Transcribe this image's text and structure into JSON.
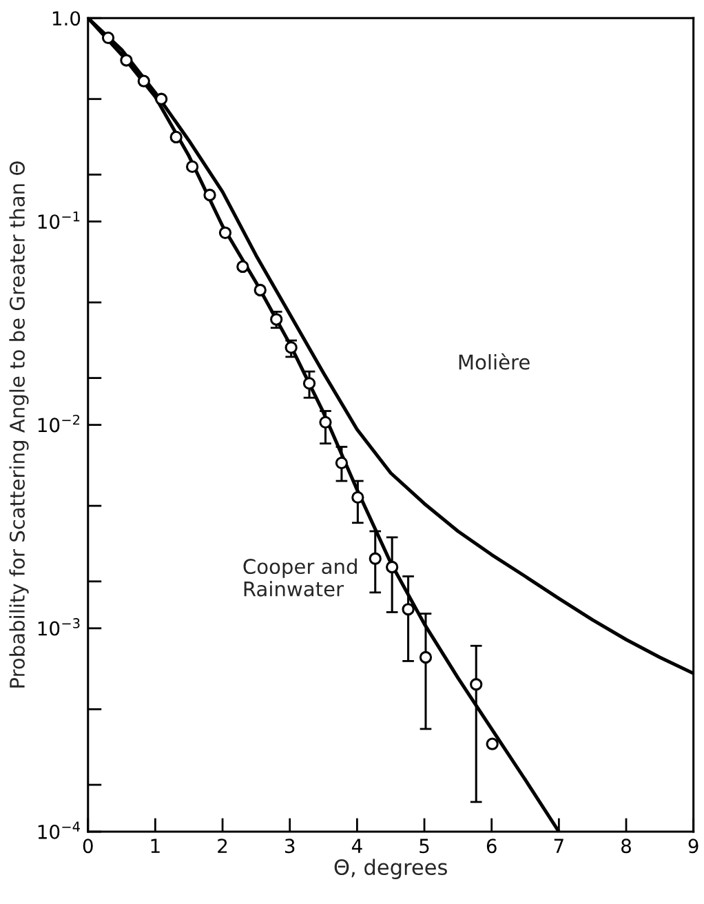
{
  "chart_data": {
    "type": "line",
    "xlabel": "Θ, degrees",
    "ylabel": "Probability for Scattering Angle to be Greater than Θ",
    "log": "y",
    "xlim": [
      0,
      9
    ],
    "xticks": [
      0,
      1,
      2,
      3,
      4,
      5,
      6,
      7,
      8,
      9
    ],
    "ylim": [
      0.0001,
      1
    ],
    "yticks": [
      {
        "value": 0.0001,
        "label": "10$^{−4}$"
      },
      {
        "value": 0.00017,
        "label": null
      },
      {
        "value": 0.0004,
        "label": null
      },
      {
        "value": 0.001,
        "label": "10$^{−3}$"
      },
      {
        "value": 0.0017,
        "label": null
      },
      {
        "value": 0.004,
        "label": null
      },
      {
        "value": 0.01,
        "label": "10$^{−2}$"
      },
      {
        "value": 0.017,
        "label": null
      },
      {
        "value": 0.04,
        "label": null
      },
      {
        "value": 0.1,
        "label": "10$^{−1}$"
      },
      {
        "value": 0.17,
        "label": null
      },
      {
        "value": 0.4,
        "label": null
      },
      {
        "value": 1,
        "label": "1.0"
      }
    ],
    "grid": false,
    "series": [
      {
        "color": "#000000",
        "marker": "none",
        "line_style": "solid",
        "x": [
          0,
          0.5,
          1,
          1.5,
          2,
          2.5,
          3,
          3.5,
          4,
          4.5,
          5,
          5.5,
          6,
          6.5,
          7,
          7.5,
          8,
          8.5,
          9
        ],
        "values": [
          1,
          0.7,
          0.43,
          0.25,
          0.14,
          0.068,
          0.035,
          0.018,
          0.0095,
          0.0058,
          0.0041,
          0.003,
          0.0023,
          0.0018,
          0.0014,
          0.0011,
          0.00088,
          0.00072,
          0.0006
        ]
      },
      {
        "color": "#000000",
        "marker": "none",
        "line_style": "solid",
        "x": [
          0,
          0.5,
          1,
          1.5,
          2,
          2.5,
          3,
          3.5,
          4,
          4.5,
          5,
          5.5,
          6,
          6.5,
          7
        ],
        "values": [
          1,
          0.66,
          0.41,
          0.21,
          0.095,
          0.05,
          0.025,
          0.0115,
          0.0048,
          0.0021,
          0.00105,
          0.00057,
          0.00032,
          0.00018,
          0.0001
        ]
      },
      {
        "type": "scatter",
        "color": "#000000",
        "marker": "circle",
        "x": [
          0.3,
          0.57,
          0.83,
          1.09,
          1.31,
          1.55,
          1.81,
          2.04,
          2.3,
          2.56,
          2.8,
          3.02,
          3.29,
          3.53,
          3.77,
          4.01,
          4.27,
          4.52,
          4.76,
          5.02,
          5.77,
          6.01
        ],
        "values": [
          0.8,
          0.62,
          0.49,
          0.4,
          0.26,
          0.186,
          0.135,
          0.088,
          0.06,
          0.046,
          0.033,
          0.024,
          0.016,
          0.0103,
          0.0065,
          0.0044,
          0.0022,
          0.002,
          0.00124,
          0.00072,
          0.00053,
          0.00027
        ],
        "errors": [
          null,
          null,
          null,
          null,
          null,
          null,
          null,
          null,
          null,
          null,
          [
            0.03,
            0.036
          ],
          [
            0.0216,
            0.026
          ],
          [
            0.0136,
            0.0183
          ],
          [
            0.0081,
            0.0117
          ],
          [
            0.0053,
            0.0078
          ],
          [
            0.0033,
            0.0053
          ],
          [
            0.0015,
            0.003
          ],
          [
            0.0012,
            0.0028
          ],
          [
            0.00069,
            0.0018
          ],
          [
            0.00032,
            0.00118
          ],
          [
            0.00014,
            0.00082
          ],
          null
        ]
      }
    ],
    "annotations": [
      "Molière",
      "Cooper and\nRainwater"
    ]
  }
}
